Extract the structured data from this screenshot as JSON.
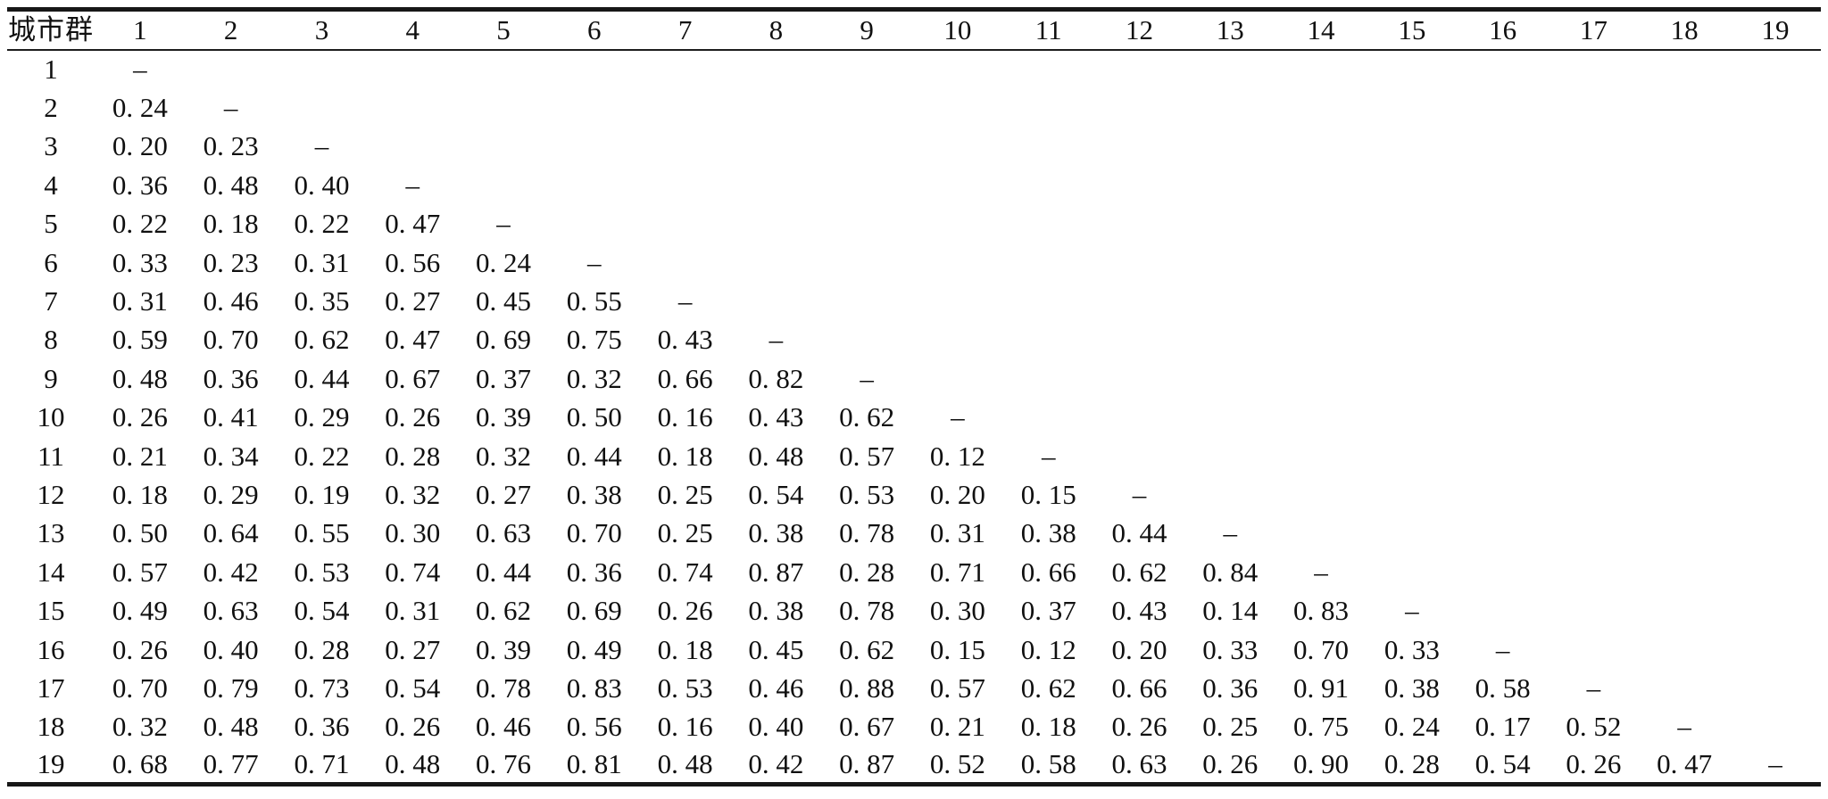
{
  "table": {
    "corner_header": "城市群",
    "column_headers": [
      "1",
      "2",
      "3",
      "4",
      "5",
      "6",
      "7",
      "8",
      "9",
      "10",
      "11",
      "12",
      "13",
      "14",
      "15",
      "16",
      "17",
      "18",
      "19"
    ],
    "dash": "–",
    "rows": [
      {
        "label": "1",
        "values": [
          "–"
        ]
      },
      {
        "label": "2",
        "values": [
          "0. 24",
          "–"
        ]
      },
      {
        "label": "3",
        "values": [
          "0. 20",
          "0. 23",
          "–"
        ]
      },
      {
        "label": "4",
        "values": [
          "0. 36",
          "0. 48",
          "0. 40",
          "–"
        ]
      },
      {
        "label": "5",
        "values": [
          "0. 22",
          "0. 18",
          "0. 22",
          "0. 47",
          "–"
        ]
      },
      {
        "label": "6",
        "values": [
          "0. 33",
          "0. 23",
          "0. 31",
          "0. 56",
          "0. 24",
          "–"
        ]
      },
      {
        "label": "7",
        "values": [
          "0. 31",
          "0. 46",
          "0. 35",
          "0. 27",
          "0. 45",
          "0. 55",
          "–"
        ]
      },
      {
        "label": "8",
        "values": [
          "0. 59",
          "0. 70",
          "0. 62",
          "0. 47",
          "0. 69",
          "0. 75",
          "0. 43",
          "–"
        ]
      },
      {
        "label": "9",
        "values": [
          "0. 48",
          "0. 36",
          "0. 44",
          "0. 67",
          "0. 37",
          "0. 32",
          "0. 66",
          "0. 82",
          "–"
        ]
      },
      {
        "label": "10",
        "values": [
          "0. 26",
          "0. 41",
          "0. 29",
          "0. 26",
          "0. 39",
          "0. 50",
          "0. 16",
          "0. 43",
          "0. 62",
          "–"
        ]
      },
      {
        "label": "11",
        "values": [
          "0. 21",
          "0. 34",
          "0. 22",
          "0. 28",
          "0. 32",
          "0. 44",
          "0. 18",
          "0. 48",
          "0. 57",
          "0. 12",
          "–"
        ]
      },
      {
        "label": "12",
        "values": [
          "0. 18",
          "0. 29",
          "0. 19",
          "0. 32",
          "0. 27",
          "0. 38",
          "0. 25",
          "0. 54",
          "0. 53",
          "0. 20",
          "0. 15",
          "–"
        ]
      },
      {
        "label": "13",
        "values": [
          "0. 50",
          "0. 64",
          "0. 55",
          "0. 30",
          "0. 63",
          "0. 70",
          "0. 25",
          "0. 38",
          "0. 78",
          "0. 31",
          "0. 38",
          "0. 44",
          "–"
        ]
      },
      {
        "label": "14",
        "values": [
          "0. 57",
          "0. 42",
          "0. 53",
          "0. 74",
          "0. 44",
          "0. 36",
          "0. 74",
          "0. 87",
          "0. 28",
          "0. 71",
          "0. 66",
          "0. 62",
          "0. 84",
          "–"
        ]
      },
      {
        "label": "15",
        "values": [
          "0. 49",
          "0. 63",
          "0. 54",
          "0. 31",
          "0. 62",
          "0. 69",
          "0. 26",
          "0. 38",
          "0. 78",
          "0. 30",
          "0. 37",
          "0. 43",
          "0. 14",
          "0. 83",
          "–"
        ]
      },
      {
        "label": "16",
        "values": [
          "0. 26",
          "0. 40",
          "0. 28",
          "0. 27",
          "0. 39",
          "0. 49",
          "0. 18",
          "0. 45",
          "0. 62",
          "0. 15",
          "0. 12",
          "0. 20",
          "0. 33",
          "0. 70",
          "0. 33",
          "–"
        ]
      },
      {
        "label": "17",
        "values": [
          "0. 70",
          "0. 79",
          "0. 73",
          "0. 54",
          "0. 78",
          "0. 83",
          "0. 53",
          "0. 46",
          "0. 88",
          "0. 57",
          "0. 62",
          "0. 66",
          "0. 36",
          "0. 91",
          "0. 38",
          "0. 58",
          "–"
        ]
      },
      {
        "label": "18",
        "values": [
          "0. 32",
          "0. 48",
          "0. 36",
          "0. 26",
          "0. 46",
          "0. 56",
          "0. 16",
          "0. 40",
          "0. 67",
          "0. 21",
          "0. 18",
          "0. 26",
          "0. 25",
          "0. 75",
          "0. 24",
          "0. 17",
          "0. 52",
          "–"
        ]
      },
      {
        "label": "19",
        "values": [
          "0. 68",
          "0. 77",
          "0. 71",
          "0. 48",
          "0. 76",
          "0. 81",
          "0. 48",
          "0. 42",
          "0. 87",
          "0. 52",
          "0. 58",
          "0. 63",
          "0. 26",
          "0. 90",
          "0. 28",
          "0. 54",
          "0. 26",
          "0. 47",
          "–"
        ]
      }
    ]
  }
}
